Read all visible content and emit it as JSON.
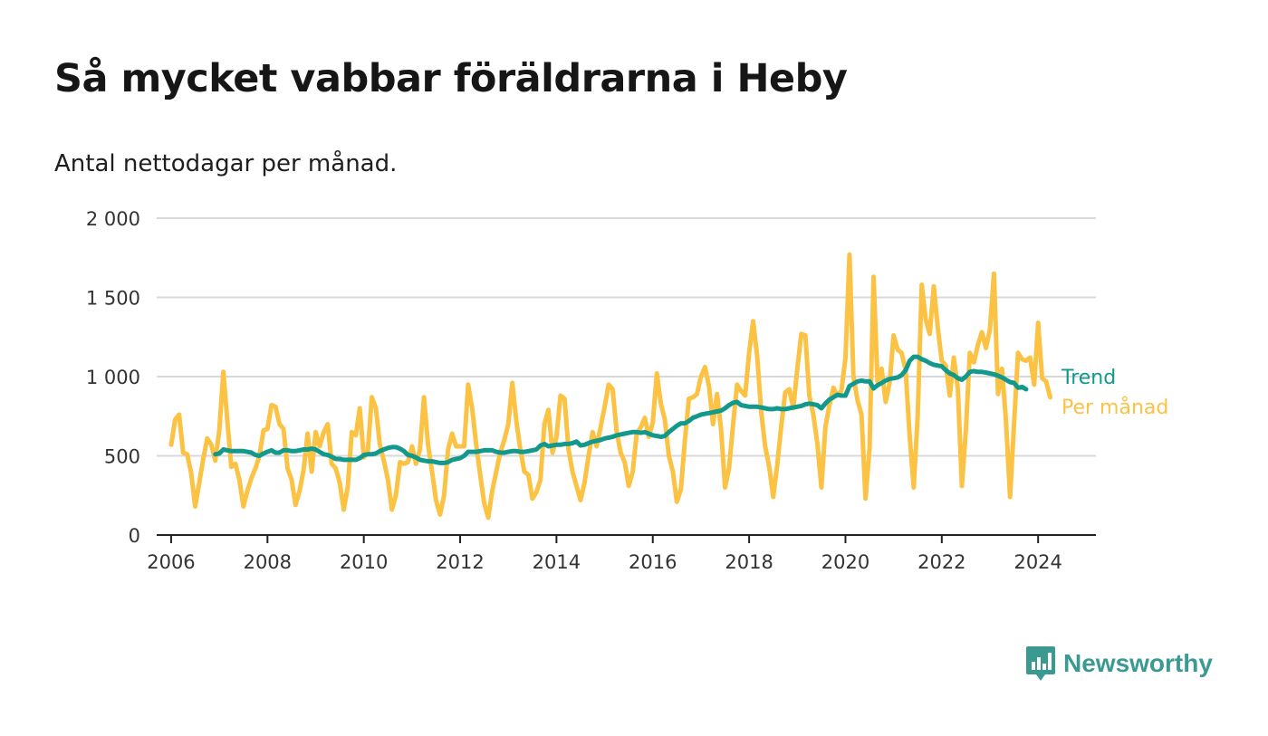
{
  "header": {
    "title": "Så mycket vabbar föräldrarna i Heby",
    "subtitle": "Antal nettodagar per månad."
  },
  "brand": {
    "name": "Newsworthy",
    "icon": "newsworthy-logo-icon",
    "color": "#3a9a92"
  },
  "colors": {
    "trend": "#12998c",
    "monthly": "#fbc244",
    "grid": "#d8d8d8",
    "axis": "#222222"
  },
  "chart_data": {
    "type": "line",
    "title": "Så mycket vabbar föräldrarna i Heby",
    "subtitle": "Antal nettodagar per månad.",
    "xlabel": "",
    "ylabel": "",
    "xlim": [
      2005.7,
      2025.2
    ],
    "ylim": [
      0,
      2000
    ],
    "grid": true,
    "legend": "inline-right",
    "x_ticks": [
      2006,
      2008,
      2010,
      2012,
      2014,
      2016,
      2018,
      2020,
      2022,
      2024
    ],
    "x_tick_labels": [
      "2006",
      "2008",
      "2010",
      "2012",
      "2014",
      "2016",
      "2018",
      "2020",
      "2022",
      "2024"
    ],
    "y_ticks": [
      0,
      500,
      1000,
      1500,
      2000
    ],
    "y_tick_labels": [
      "0",
      "500",
      "1 000",
      "1 500",
      "2 000"
    ],
    "series": [
      {
        "name": "Per månad",
        "label": "Per månad",
        "color": "#fbc244",
        "start": "2006-01",
        "step": "month",
        "values": [
          570,
          730,
          760,
          520,
          510,
          390,
          180,
          330,
          480,
          610,
          570,
          470,
          660,
          1030,
          720,
          430,
          450,
          350,
          180,
          280,
          360,
          420,
          500,
          660,
          670,
          820,
          810,
          700,
          670,
          420,
          350,
          190,
          280,
          410,
          640,
          400,
          650,
          560,
          650,
          700,
          450,
          420,
          330,
          160,
          300,
          650,
          630,
          800,
          490,
          530,
          870,
          800,
          570,
          470,
          350,
          160,
          250,
          460,
          450,
          460,
          560,
          450,
          540,
          870,
          570,
          400,
          220,
          130,
          250,
          540,
          640,
          560,
          560,
          560,
          950,
          800,
          570,
          380,
          200,
          110,
          280,
          400,
          520,
          600,
          700,
          960,
          720,
          540,
          400,
          380,
          230,
          270,
          350,
          700,
          790,
          520,
          620,
          880,
          860,
          540,
          400,
          310,
          220,
          330,
          500,
          650,
          560,
          680,
          810,
          950,
          920,
          650,
          520,
          460,
          310,
          400,
          640,
          680,
          740,
          620,
          710,
          1020,
          830,
          730,
          500,
          400,
          210,
          290,
          600,
          860,
          870,
          890,
          1000,
          1060,
          940,
          700,
          890,
          670,
          300,
          420,
          700,
          950,
          910,
          880,
          1150,
          1350,
          1130,
          780,
          560,
          430,
          240,
          440,
          690,
          900,
          920,
          800,
          1050,
          1270,
          1260,
          880,
          760,
          580,
          300,
          680,
          820,
          930,
          880,
          910,
          1120,
          1770,
          1000,
          850,
          760,
          230,
          550,
          1630,
          970,
          1050,
          840,
          960,
          1260,
          1170,
          1150,
          1040,
          620,
          300,
          750,
          1580,
          1360,
          1270,
          1570,
          1310,
          1100,
          1070,
          880,
          1120,
          920,
          310,
          660,
          1150,
          1090,
          1200,
          1280,
          1180,
          1300,
          1650,
          890,
          1050,
          720,
          240,
          700,
          1150,
          1110,
          1100,
          1120,
          950,
          1340,
          990,
          970,
          870
        ]
      },
      {
        "name": "Trend",
        "label": "Trend",
        "color": "#12998c",
        "start": "2006-12",
        "step": "month",
        "values": [
          510,
          515,
          540,
          535,
          530,
          530,
          530,
          530,
          525,
          520,
          505,
          500,
          515,
          525,
          535,
          520,
          520,
          535,
          535,
          530,
          530,
          535,
          540,
          540,
          545,
          540,
          525,
          510,
          505,
          495,
          480,
          480,
          475,
          475,
          475,
          475,
          485,
          505,
          510,
          510,
          515,
          530,
          540,
          550,
          555,
          555,
          545,
          530,
          505,
          500,
          490,
          475,
          470,
          465,
          465,
          460,
          455,
          455,
          460,
          475,
          480,
          485,
          500,
          525,
          525,
          525,
          530,
          535,
          535,
          535,
          525,
          520,
          520,
          525,
          530,
          530,
          525,
          525,
          530,
          535,
          540,
          565,
          575,
          560,
          565,
          570,
          570,
          575,
          575,
          580,
          590,
          565,
          570,
          580,
          590,
          595,
          600,
          610,
          615,
          620,
          630,
          635,
          640,
          645,
          650,
          650,
          645,
          650,
          640,
          630,
          625,
          620,
          625,
          650,
          670,
          690,
          705,
          705,
          720,
          740,
          750,
          760,
          765,
          770,
          775,
          780,
          785,
          800,
          820,
          835,
          840,
          820,
          815,
          810,
          810,
          810,
          805,
          800,
          795,
          795,
          800,
          795,
          795,
          800,
          805,
          810,
          815,
          825,
          830,
          825,
          820,
          800,
          830,
          855,
          870,
          885,
          880,
          880,
          940,
          955,
          970,
          975,
          970,
          970,
          925,
          945,
          960,
          975,
          985,
          990,
          995,
          1010,
          1040,
          1100,
          1125,
          1125,
          1110,
          1100,
          1085,
          1075,
          1070,
          1065,
          1040,
          1020,
          1010,
          990,
          980,
          1000,
          1030,
          1035,
          1030,
          1030,
          1025,
          1020,
          1015,
          1005,
          995,
          980,
          965,
          960,
          930,
          935,
          920
        ]
      }
    ]
  }
}
